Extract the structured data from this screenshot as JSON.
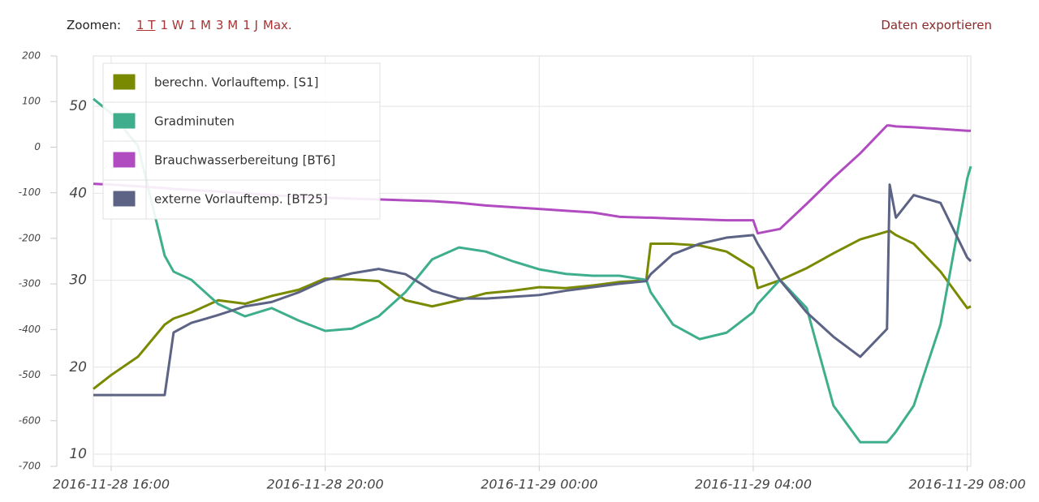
{
  "toolbar": {
    "zoom_label": "Zoomen:",
    "zoom_options": [
      "1 T",
      "1 W",
      "1 M",
      "3 M",
      "1 J",
      "Max."
    ],
    "export": "Daten exportieren"
  },
  "chart_data": {
    "type": "line",
    "legend": "upper left",
    "grid": true,
    "x": [
      "2016-11-28 15:40",
      "2016-11-28 16:00",
      "2016-11-28 16:30",
      "2016-11-28 17:00",
      "2016-11-28 17:10",
      "2016-11-28 17:30",
      "2016-11-28 18:00",
      "2016-11-28 18:30",
      "2016-11-28 19:00",
      "2016-11-28 19:30",
      "2016-11-28 20:00",
      "2016-11-28 20:30",
      "2016-11-28 21:00",
      "2016-11-28 21:30",
      "2016-11-28 22:00",
      "2016-11-28 22:30",
      "2016-11-28 23:00",
      "2016-11-28 23:30",
      "2016-11-29 00:00",
      "2016-11-29 00:30",
      "2016-11-29 01:00",
      "2016-11-29 01:30",
      "2016-11-29 02:00",
      "2016-11-29 02:05",
      "2016-11-29 02:30",
      "2016-11-29 03:00",
      "2016-11-29 03:30",
      "2016-11-29 04:00",
      "2016-11-29 04:05",
      "2016-11-29 04:30",
      "2016-11-29 05:00",
      "2016-11-29 05:30",
      "2016-11-29 06:00",
      "2016-11-29 06:30",
      "2016-11-29 06:33",
      "2016-11-29 06:40",
      "2016-11-29 07:00",
      "2016-11-29 07:30",
      "2016-11-29 08:00",
      "2016-11-29 08:04"
    ],
    "xlim": [
      "2016-11-28 15:40",
      "2016-11-29 08:04"
    ],
    "xticks": [
      "2016-11-28 16:00",
      "2016-11-28 20:00",
      "2016-11-29 00:00",
      "2016-11-29 04:00",
      "2016-11-29 08:00"
    ],
    "ylim": [
      8.6,
      55.8
    ],
    "yticks": [
      10,
      20,
      30,
      40,
      50
    ],
    "y2lim": [
      -700,
      200
    ],
    "y2ticks": [
      200,
      100,
      0,
      -100,
      -200,
      -300,
      -400,
      -500,
      -600,
      -700
    ],
    "series": [
      {
        "name": "berechn. Vorlauftemp. [S1]",
        "color": "#7a8a00",
        "values": [
          17.5,
          19.1,
          21.2,
          24.9,
          25.6,
          26.3,
          27.7,
          27.3,
          28.2,
          28.9,
          30.2,
          30.1,
          29.9,
          27.7,
          27.0,
          27.7,
          28.5,
          28.8,
          29.2,
          29.1,
          29.4,
          29.8,
          30.0,
          34.2,
          34.2,
          34.0,
          33.3,
          31.4,
          29.1,
          30.0,
          31.4,
          33.1,
          34.7,
          35.6,
          35.7,
          35.2,
          34.2,
          31.0,
          26.8,
          27.0
        ]
      },
      {
        "name": "Gradminuten",
        "color": "#3fae8c",
        "axis": "y2",
        "values": [
          106,
          74,
          3,
          -238,
          -273,
          -291,
          -344,
          -371,
          -353,
          -380,
          -403,
          -398,
          -371,
          -318,
          -246,
          -220,
          -229,
          -250,
          -268,
          -278,
          -282,
          -282,
          -291,
          -318,
          -389,
          -421,
          -407,
          -362,
          -344,
          -291,
          -353,
          -567,
          -647,
          -647,
          -641,
          -624,
          -567,
          -389,
          -69,
          -42
        ]
      },
      {
        "name": "Brauchwasserbereitung [BT6]",
        "color": "#b04cc0",
        "values": [
          41.1,
          41.0,
          40.8,
          40.6,
          40.5,
          40.4,
          40.2,
          40.0,
          39.8,
          39.6,
          39.5,
          39.4,
          39.3,
          39.2,
          39.1,
          38.9,
          38.6,
          38.4,
          38.2,
          38.0,
          37.8,
          37.3,
          37.2,
          37.2,
          37.1,
          37.0,
          36.9,
          36.9,
          35.4,
          35.9,
          38.8,
          41.8,
          44.6,
          47.8,
          47.8,
          47.7,
          47.6,
          47.4,
          47.2,
          47.2
        ]
      },
      {
        "name": "externe Vorlauftemp. [BT25]",
        "color": "#5c6384",
        "values": [
          16.8,
          16.8,
          16.8,
          16.8,
          24.0,
          25.1,
          26.0,
          27.0,
          27.5,
          28.6,
          30.0,
          30.8,
          31.3,
          30.7,
          28.8,
          27.9,
          27.9,
          28.1,
          28.3,
          28.8,
          29.2,
          29.6,
          29.9,
          30.7,
          33.0,
          34.2,
          34.9,
          35.2,
          34.2,
          30.0,
          26.3,
          23.5,
          21.2,
          24.4,
          41.0,
          37.2,
          39.8,
          38.9,
          32.6,
          32.2
        ]
      }
    ]
  }
}
